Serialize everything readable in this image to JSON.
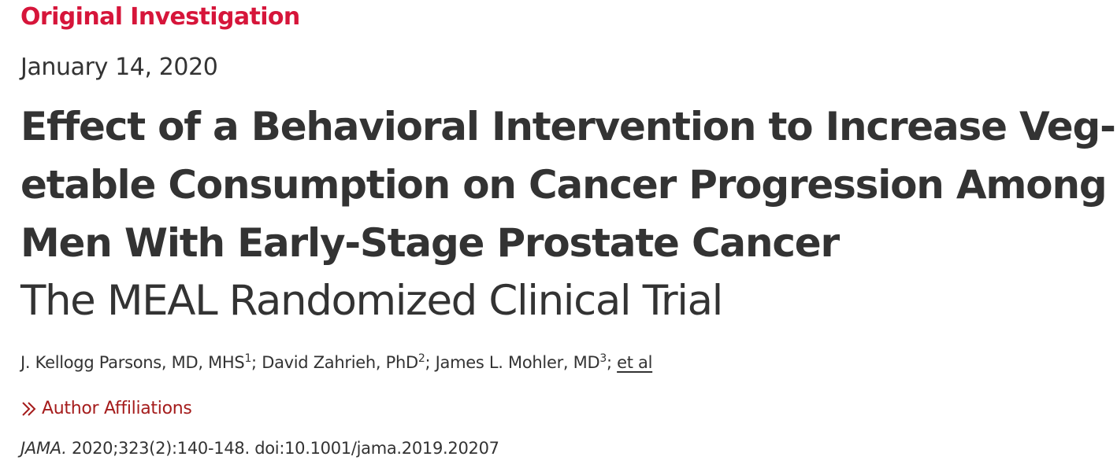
{
  "article": {
    "type_label": "Original Investigation",
    "date": "January 14, 2020",
    "title_lines": [
      "Effect of a Behavioral Intervention to Increase Veg-",
      "etable Consumption on Cancer Progression Among",
      "Men With Early-Stage Prostate Cancer"
    ],
    "subtitle": "The MEAL Randomized Clinical Trial"
  },
  "authors": [
    {
      "name": "J. Kellogg Parsons, MD, MHS",
      "affiliation_ref": "1",
      "separator": "; "
    },
    {
      "name": "David Zahrieh, PhD",
      "affiliation_ref": "2",
      "separator": "; "
    },
    {
      "name": "James L. Mohler, MD",
      "affiliation_ref": "3",
      "separator": "; "
    }
  ],
  "et_al_label": "et al",
  "affiliations_link": {
    "icon": "double-chevron-right-icon",
    "label": "Author Affiliations"
  },
  "citation": {
    "journal": "JAMA.",
    "details": " 2020;323(2):140-148. doi:10.1001/jama.2019.20207"
  },
  "colors": {
    "accent_red": "#d6153a",
    "link_red": "#a51c1c",
    "text": "#333333"
  }
}
